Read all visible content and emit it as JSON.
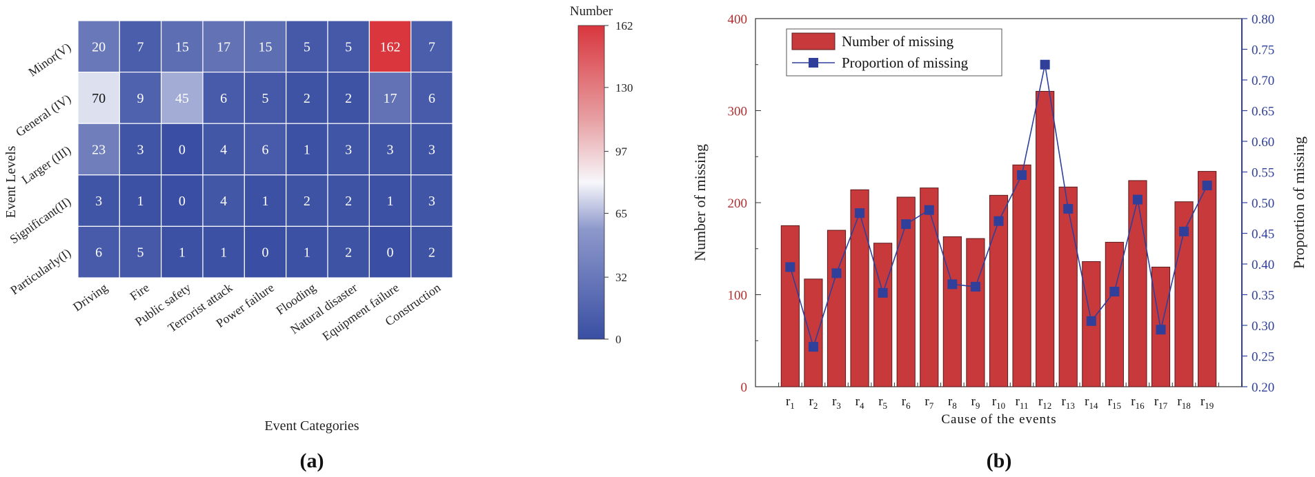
{
  "panels": {
    "a_label": "(a)",
    "b_label": "(b)"
  },
  "colors": {
    "heat_low": "#3a4fa3",
    "heat_mid": "#f7f7fb",
    "heat_high": "#d9363e",
    "bar_fill": "#c7393b",
    "bar_stroke": "#5a1a1a",
    "line_color": "#2f3f9a",
    "left_axis": "#b02f30",
    "right_axis": "#2f3f9a"
  },
  "chart_data": [
    {
      "type": "heatmap",
      "title": "",
      "xlabel": "Event Categories",
      "ylabel": "Event Levels",
      "x_categories": [
        "Driving",
        "Fire",
        "Public safety",
        "Terrorist attack",
        "Power failure",
        "Flooding",
        "Natural disaster",
        "Equipment failure",
        "Construction"
      ],
      "y_categories": [
        "Minor(V)",
        "General (IV)",
        "Larger (III)",
        "Significant(II)",
        "Particularly(I)"
      ],
      "values": [
        [
          20,
          7,
          15,
          17,
          15,
          5,
          5,
          162,
          7
        ],
        [
          70,
          9,
          45,
          6,
          5,
          2,
          2,
          17,
          6
        ],
        [
          23,
          3,
          0,
          4,
          6,
          1,
          3,
          3,
          3
        ],
        [
          3,
          1,
          0,
          4,
          1,
          2,
          2,
          1,
          3
        ],
        [
          6,
          5,
          1,
          1,
          0,
          1,
          2,
          0,
          2
        ]
      ],
      "colorbar": {
        "title": "Number",
        "min": 0,
        "max": 162,
        "ticks": [
          0,
          32,
          65,
          97,
          130,
          162
        ]
      },
      "grid": true
    },
    {
      "type": "bar+line",
      "xlabel": "Cause of the events",
      "ylabel": "Number of missing",
      "y2label": "Proportion of missing",
      "categories": [
        "r1",
        "r2",
        "r3",
        "r4",
        "r5",
        "r6",
        "r7",
        "r8",
        "r9",
        "r10",
        "r11",
        "r12",
        "r13",
        "r14",
        "r15",
        "r16",
        "r17",
        "r18",
        "r19"
      ],
      "category_subs": [
        "1",
        "2",
        "3",
        "4",
        "5",
        "6",
        "7",
        "8",
        "9",
        "10",
        "11",
        "12",
        "13",
        "14",
        "15",
        "16",
        "17",
        "18",
        "19"
      ],
      "category_base": "r",
      "series": [
        {
          "name": "Number of missing",
          "type": "bar",
          "axis": "left",
          "values": [
            175,
            117,
            170,
            214,
            156,
            206,
            216,
            163,
            161,
            208,
            241,
            321,
            217,
            136,
            157,
            224,
            130,
            201,
            234
          ]
        },
        {
          "name": "Proportion of missing",
          "type": "line",
          "axis": "right",
          "values": [
            0.395,
            0.265,
            0.385,
            0.483,
            0.353,
            0.465,
            0.488,
            0.367,
            0.363,
            0.47,
            0.545,
            0.725,
            0.49,
            0.307,
            0.355,
            0.505,
            0.293,
            0.453,
            0.528
          ]
        }
      ],
      "ylim": [
        0,
        400
      ],
      "yticks": [
        0,
        100,
        200,
        300,
        400
      ],
      "y2lim": [
        0.2,
        0.8
      ],
      "y2ticks": [
        "0.20",
        "0.25",
        "0.30",
        "0.35",
        "0.40",
        "0.45",
        "0.50",
        "0.55",
        "0.60",
        "0.65",
        "0.70",
        "0.75",
        "0.80"
      ],
      "legend": "top-left",
      "grid": false
    }
  ]
}
